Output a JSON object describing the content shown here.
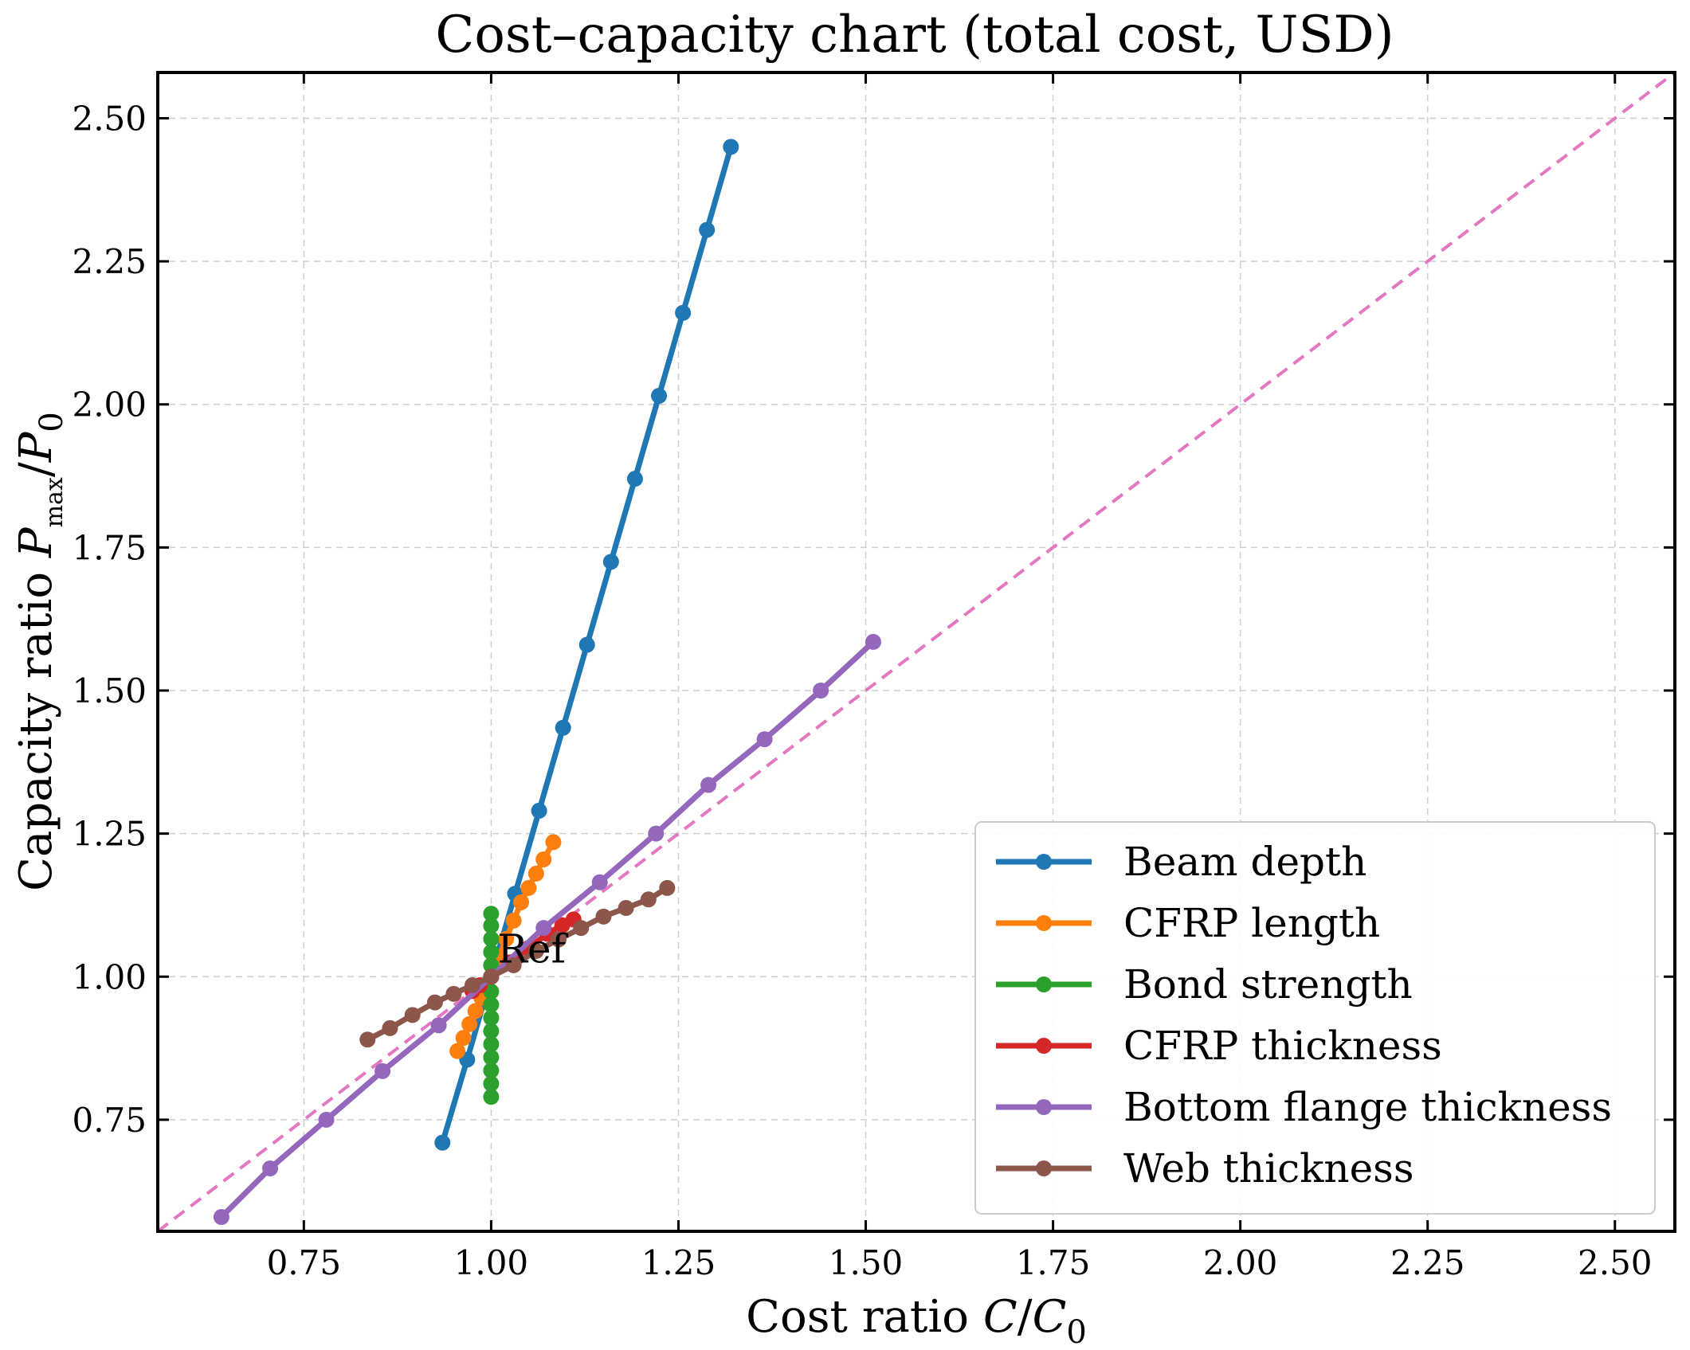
{
  "chart_data": {
    "type": "line",
    "title": "Cost–capacity chart (total cost, USD)",
    "xlabel": {
      "prefix": "Cost ratio ",
      "var": "C",
      "sub": "0",
      "sep": "/"
    },
    "ylabel": {
      "prefix": "Capacity ratio ",
      "var": "P",
      "var_sub": "max",
      "sep": "/",
      "den": "P",
      "den_sub": "0"
    },
    "xlim": [
      0.555,
      2.58
    ],
    "ylim": [
      0.555,
      2.58
    ],
    "xticks": [
      0.75,
      1.0,
      1.25,
      1.5,
      1.75,
      2.0,
      2.25,
      2.5
    ],
    "yticks": [
      0.75,
      1.0,
      1.25,
      1.5,
      1.75,
      2.0,
      2.25,
      2.5
    ],
    "tick_labels": [
      "0.75",
      "1.00",
      "1.25",
      "1.50",
      "1.75",
      "2.00",
      "2.25",
      "2.50"
    ],
    "grid": true,
    "legend_position": "lower-right",
    "series": [
      {
        "name": "Beam depth",
        "color": "#1f77b4",
        "x": [
          0.935,
          0.968,
          1.0,
          1.032,
          1.064,
          1.096,
          1.128,
          1.16,
          1.192,
          1.224,
          1.256,
          1.288,
          1.32
        ],
        "y": [
          0.71,
          0.855,
          1.0,
          1.145,
          1.29,
          1.435,
          1.58,
          1.725,
          1.87,
          2.015,
          2.16,
          2.305,
          2.45
        ]
      },
      {
        "name": "CFRP length",
        "color": "#ff7f0e",
        "x": [
          0.955,
          0.963,
          0.971,
          0.979,
          0.987,
          0.994,
          1.0,
          1.01,
          1.02,
          1.03,
          1.04,
          1.05,
          1.06,
          1.07,
          1.083
        ],
        "y": [
          0.87,
          0.893,
          0.917,
          0.94,
          0.963,
          0.985,
          1.0,
          1.033,
          1.066,
          1.098,
          1.13,
          1.155,
          1.18,
          1.205,
          1.235
        ]
      },
      {
        "name": "Bond strength",
        "color": "#2ca02c",
        "x": [
          1.0,
          1.0,
          1.0,
          1.0,
          1.0,
          1.0,
          1.0,
          1.0,
          1.0,
          1.0,
          1.0,
          1.0,
          1.0,
          1.0,
          1.0
        ],
        "y": [
          0.79,
          0.813,
          0.836,
          0.859,
          0.882,
          0.905,
          0.928,
          0.951,
          0.974,
          1.0,
          1.02,
          1.043,
          1.066,
          1.089,
          1.11
        ]
      },
      {
        "name": "CFRP thickness",
        "color": "#d62728",
        "x": [
          0.975,
          0.985,
          1.0,
          1.025,
          1.05,
          1.075,
          1.095,
          1.11
        ],
        "y": [
          0.975,
          0.985,
          1.0,
          1.025,
          1.05,
          1.075,
          1.09,
          1.1
        ]
      },
      {
        "name": "Bottom flange thickness",
        "color": "#9467bd",
        "x": [
          0.64,
          0.705,
          0.78,
          0.855,
          0.93,
          1.0,
          1.07,
          1.145,
          1.22,
          1.29,
          1.365,
          1.44,
          1.51
        ],
        "y": [
          0.58,
          0.665,
          0.75,
          0.835,
          0.915,
          1.0,
          1.085,
          1.165,
          1.25,
          1.335,
          1.415,
          1.5,
          1.585
        ]
      },
      {
        "name": "Web thickness",
        "color": "#8c564b",
        "x": [
          0.835,
          0.865,
          0.895,
          0.925,
          0.95,
          0.975,
          1.0,
          1.03,
          1.06,
          1.09,
          1.12,
          1.15,
          1.18,
          1.21,
          1.235
        ],
        "y": [
          0.89,
          0.91,
          0.933,
          0.955,
          0.97,
          0.985,
          1.0,
          1.02,
          1.045,
          1.065,
          1.085,
          1.105,
          1.12,
          1.135,
          1.155
        ]
      }
    ],
    "reference_line": {
      "type": "y=x",
      "color": "#e377c2"
    },
    "annotation": {
      "text": "Ref",
      "x": 1.0,
      "y": 1.0
    }
  }
}
